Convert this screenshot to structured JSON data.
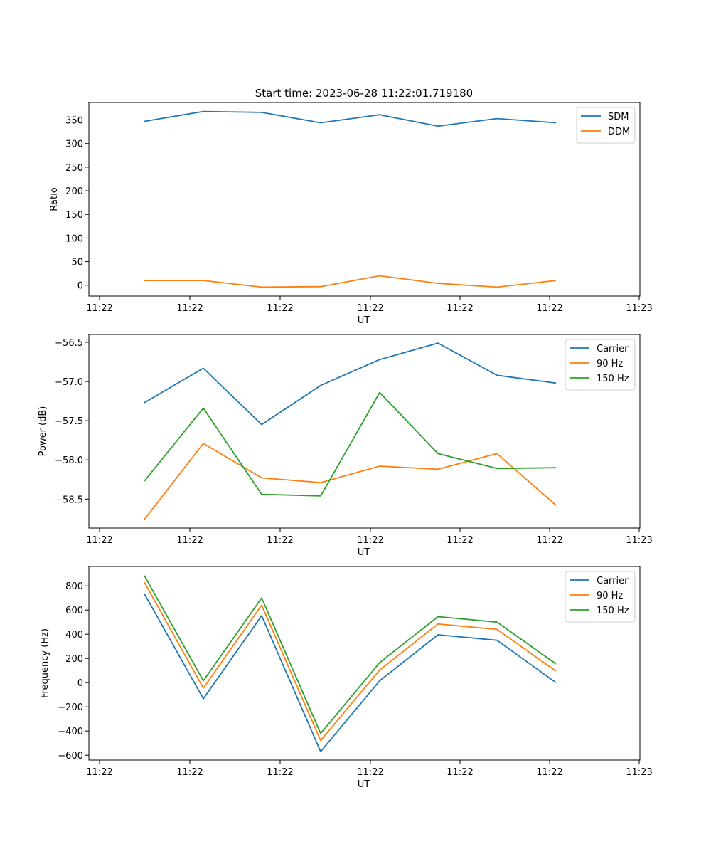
{
  "figure": {
    "title": "Start time: 2023-06-28 11:22:01.719180"
  },
  "chart_data": [
    {
      "type": "line",
      "title": "Start time: 2023-06-28 11:22:01.719180",
      "xlabel": "UT",
      "ylabel": "Ratio",
      "x_tick_labels": [
        "11:22",
        "11:22",
        "11:22",
        "11:22",
        "11:22",
        "11:22",
        "11:22",
        "11:23"
      ],
      "y_ticks": [
        0,
        50,
        100,
        150,
        200,
        250,
        300,
        350
      ],
      "y_tick_labels": [
        "0",
        "50",
        "100",
        "150",
        "200",
        "250",
        "300",
        "350"
      ],
      "ylim": [
        -23,
        387
      ],
      "legend_position": "top-right",
      "grid": false,
      "series": [
        {
          "name": "SDM",
          "color": "#1f77b4",
          "values": [
            347,
            368,
            366,
            344,
            361,
            337,
            353,
            344
          ]
        },
        {
          "name": "DDM",
          "color": "#ff7f0e",
          "values": [
            10,
            10,
            -4,
            -3,
            20,
            4,
            -4,
            10
          ]
        }
      ]
    },
    {
      "type": "line",
      "xlabel": "UT",
      "ylabel": "Power (dB)",
      "x_tick_labels": [
        "11:22",
        "11:22",
        "11:22",
        "11:22",
        "11:22",
        "11:22",
        "11:22",
        "11:23"
      ],
      "y_ticks": [
        -58.5,
        -58.0,
        -57.5,
        -57.0,
        -56.5
      ],
      "y_tick_labels": [
        "−58.5",
        "−58.0",
        "−57.5",
        "−57.0",
        "−56.5"
      ],
      "ylim": [
        -58.87,
        -56.4
      ],
      "legend_position": "top-right",
      "grid": false,
      "series": [
        {
          "name": "Carrier",
          "color": "#1f77b4",
          "values": [
            -57.27,
            -56.83,
            -57.55,
            -57.05,
            -56.72,
            -56.51,
            -56.92,
            -57.02
          ]
        },
        {
          "name": "90 Hz",
          "color": "#ff7f0e",
          "values": [
            -58.76,
            -57.79,
            -58.23,
            -58.29,
            -58.08,
            -58.12,
            -57.92,
            -58.58
          ]
        },
        {
          "name": "150 Hz",
          "color": "#2ca02c",
          "values": [
            -58.27,
            -57.34,
            -58.44,
            -58.46,
            -57.14,
            -57.92,
            -58.11,
            -58.1
          ]
        }
      ]
    },
    {
      "type": "line",
      "xlabel": "UT",
      "ylabel": "Frequency (Hz)",
      "x_tick_labels": [
        "11:22",
        "11:22",
        "11:22",
        "11:22",
        "11:22",
        "11:22",
        "11:22",
        "11:23"
      ],
      "y_ticks": [
        -600,
        -400,
        -200,
        0,
        200,
        400,
        600,
        800
      ],
      "y_tick_labels": [
        "−600",
        "−400",
        "−200",
        "0",
        "200",
        "400",
        "600",
        "800"
      ],
      "ylim": [
        -640,
        960
      ],
      "legend_position": "top-right",
      "grid": false,
      "series": [
        {
          "name": "Carrier",
          "color": "#1f77b4",
          "values": [
            735,
            -133,
            553,
            -570,
            15,
            395,
            350,
            0
          ]
        },
        {
          "name": "90 Hz",
          "color": "#ff7f0e",
          "values": [
            830,
            -45,
            640,
            -478,
            105,
            485,
            440,
            95
          ]
        },
        {
          "name": "150 Hz",
          "color": "#2ca02c",
          "values": [
            885,
            15,
            700,
            -420,
            165,
            545,
            500,
            155
          ]
        }
      ]
    }
  ]
}
